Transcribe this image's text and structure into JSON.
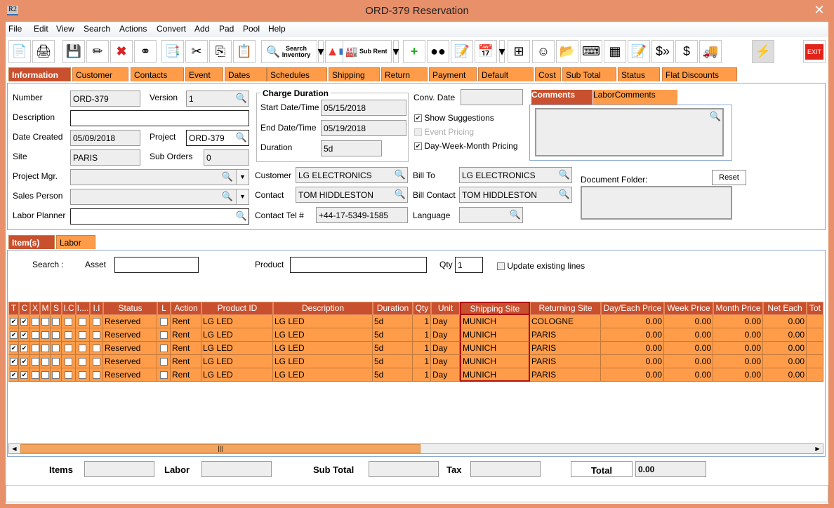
{
  "window": {
    "title": "ORD-379 Reservation",
    "app_icon": "R2"
  },
  "menu": [
    "File",
    "Edit",
    "View",
    "Search",
    "Actions",
    "Convert",
    "Add",
    "Pad",
    "Pool",
    "Help"
  ],
  "toolbar": {
    "search_inventory": "Search Inventory",
    "sub_rent": "Sub Rent",
    "exit": "EXIT"
  },
  "tabs": [
    "Information",
    "Customer",
    "Contacts",
    "Event",
    "Dates",
    "Schedules",
    "Shipping",
    "Return",
    "Payment",
    "Default",
    "Cost",
    "Sub Total",
    "Status",
    "Flat Discounts"
  ],
  "form": {
    "number_label": "Number",
    "number": "ORD-379",
    "version_label": "Version",
    "version": "1",
    "description_label": "Description",
    "description": "",
    "date_created_label": "Date Created",
    "date_created": "05/09/2018",
    "project_label": "Project",
    "project": "ORD-379",
    "site_label": "Site",
    "site": "PARIS",
    "sub_orders_label": "Sub Orders",
    "sub_orders": "0",
    "project_mgr_label": "Project Mgr.",
    "project_mgr": "",
    "sales_person_label": "Sales Person",
    "sales_person": "",
    "labor_planner_label": "Labor Planner",
    "labor_planner": "",
    "charge_duration_title": "Charge Duration",
    "start_label": "Start Date/Time",
    "start": "05/15/2018",
    "end_label": "End Date/Time",
    "end": "05/19/2018",
    "duration_label": "Duration",
    "duration": "5d",
    "conv_date_label": "Conv. Date",
    "conv_date": "",
    "show_suggestions": "Show Suggestions",
    "event_pricing": "Event Pricing",
    "dwm_pricing": "Day-Week-Month Pricing",
    "customer_label": "Customer",
    "customer": "LG ELECTRONICS",
    "contact_label": "Contact",
    "contact": "TOM HIDDLESTON",
    "contact_tel_label": "Contact Tel #",
    "contact_tel": "+44-17-5349-1585",
    "bill_to_label": "Bill To",
    "bill_to": "LG ELECTRONICS",
    "bill_contact_label": "Bill Contact",
    "bill_contact": "TOM HIDDLESTON",
    "language_label": "Language",
    "language": "",
    "comment_tabs": [
      "Comments",
      "LaborComments"
    ],
    "document_folder_label": "Document Folder:",
    "reset": "Reset"
  },
  "item_tabs": [
    "Item(s)",
    "Labor"
  ],
  "search": {
    "label": "Search :",
    "asset_label": "Asset",
    "asset": "",
    "product_label": "Product",
    "product": "",
    "qty_label": "Qty",
    "qty": "1",
    "update_existing": "Update existing lines"
  },
  "grid": {
    "columns": [
      "T",
      "C",
      "X",
      "M",
      "S",
      "I.C",
      "I....",
      "I.I",
      "Status",
      "L",
      "Action",
      "Product ID",
      "Description",
      "Duration",
      "Qty",
      "Unit",
      "Shipping Site",
      "Returning Site",
      "Day/Each Price",
      "Week Price",
      "Month Price",
      "Net Each",
      "Tot"
    ],
    "rows": [
      {
        "t": true,
        "c": true,
        "status": "Reserved",
        "action": "Rent",
        "product_id": "LG LED",
        "description": "LG LED",
        "duration": "5d",
        "qty": "1",
        "unit": "Day",
        "shipping": "MUNICH",
        "returning": "COLOGNE",
        "day": "0.00",
        "week": "0.00",
        "month": "0.00",
        "net": "0.00"
      },
      {
        "t": true,
        "c": true,
        "status": "Reserved",
        "action": "Rent",
        "product_id": "LG LED",
        "description": "LG LED",
        "duration": "5d",
        "qty": "1",
        "unit": "Day",
        "shipping": "MUNICH",
        "returning": "PARIS",
        "day": "0.00",
        "week": "0.00",
        "month": "0.00",
        "net": "0.00"
      },
      {
        "t": true,
        "c": true,
        "status": "Reserved",
        "action": "Rent",
        "product_id": "LG LED",
        "description": "LG LED",
        "duration": "5d",
        "qty": "1",
        "unit": "Day",
        "shipping": "MUNICH",
        "returning": "PARIS",
        "day": "0.00",
        "week": "0.00",
        "month": "0.00",
        "net": "0.00"
      },
      {
        "t": true,
        "c": true,
        "status": "Reserved",
        "action": "Rent",
        "product_id": "LG LED",
        "description": "LG LED",
        "duration": "5d",
        "qty": "1",
        "unit": "Day",
        "shipping": "MUNICH",
        "returning": "PARIS",
        "day": "0.00",
        "week": "0.00",
        "month": "0.00",
        "net": "0.00"
      },
      {
        "t": true,
        "c": true,
        "status": "Reserved",
        "action": "Rent",
        "product_id": "LG LED",
        "description": "LG LED",
        "duration": "5d",
        "qty": "1",
        "unit": "Day",
        "shipping": "MUNICH",
        "returning": "PARIS",
        "day": "0.00",
        "week": "0.00",
        "month": "0.00",
        "net": "0.00"
      }
    ]
  },
  "totals": {
    "items_label": "Items",
    "items": "",
    "labor_label": "Labor",
    "labor": "",
    "subtotal_label": "Sub Total",
    "subtotal": "",
    "tax_label": "Tax",
    "tax": "",
    "total_label": "Total",
    "total": "0.00"
  },
  "colors": {
    "title_bar": "#e8906a",
    "tab": "#ff9c4a",
    "tab_selected": "#c8502e",
    "row": "#ff9c4a",
    "header": "#c8502e",
    "highlight": "#b01010"
  }
}
